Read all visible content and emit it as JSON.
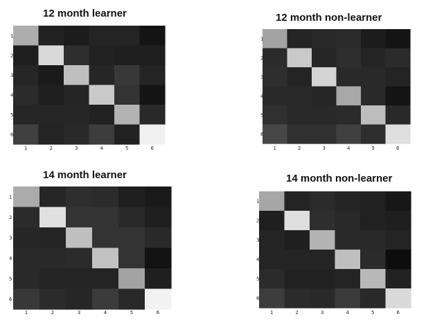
{
  "chart_data": [
    {
      "type": "heatmap",
      "title": "12 month learner",
      "x_ticks": [
        "1",
        "2",
        "3",
        "4",
        "5",
        "6"
      ],
      "y_ticks": [
        "1",
        "2",
        "3",
        "4",
        "5",
        "6"
      ],
      "colormap": "grayscale",
      "range": [
        0,
        1
      ],
      "values": [
        [
          0.68,
          0.13,
          0.11,
          0.14,
          0.14,
          0.08
        ],
        [
          0.12,
          0.85,
          0.18,
          0.13,
          0.12,
          0.12
        ],
        [
          0.15,
          0.1,
          0.75,
          0.15,
          0.22,
          0.14
        ],
        [
          0.17,
          0.12,
          0.14,
          0.79,
          0.2,
          0.08
        ],
        [
          0.15,
          0.15,
          0.15,
          0.13,
          0.7,
          0.16
        ],
        [
          0.25,
          0.14,
          0.16,
          0.24,
          0.13,
          0.94
        ]
      ]
    },
    {
      "type": "heatmap",
      "title": "12 month non-learner",
      "x_ticks": [
        "1",
        "2",
        "3",
        "4",
        "5",
        "6"
      ],
      "y_ticks": [
        "1",
        "2",
        "3",
        "4",
        "5",
        "6"
      ],
      "colormap": "grayscale",
      "range": [
        0,
        1
      ],
      "values": [
        [
          0.64,
          0.14,
          0.16,
          0.17,
          0.11,
          0.08
        ],
        [
          0.17,
          0.79,
          0.15,
          0.18,
          0.14,
          0.17
        ],
        [
          0.18,
          0.14,
          0.83,
          0.16,
          0.16,
          0.14
        ],
        [
          0.16,
          0.16,
          0.15,
          0.66,
          0.16,
          0.08
        ],
        [
          0.19,
          0.16,
          0.16,
          0.17,
          0.74,
          0.16
        ],
        [
          0.28,
          0.19,
          0.19,
          0.25,
          0.18,
          0.87
        ]
      ]
    },
    {
      "type": "heatmap",
      "title": "14 month learner",
      "x_ticks": [
        "1",
        "2",
        "3",
        "4",
        "5",
        "6"
      ],
      "y_ticks": [
        "1",
        "2",
        "3",
        "4",
        "5",
        "6"
      ],
      "colormap": "grayscale",
      "range": [
        0,
        1
      ],
      "values": [
        [
          0.67,
          0.15,
          0.18,
          0.17,
          0.12,
          0.1
        ],
        [
          0.17,
          0.88,
          0.2,
          0.2,
          0.16,
          0.12
        ],
        [
          0.15,
          0.14,
          0.75,
          0.2,
          0.2,
          0.16
        ],
        [
          0.16,
          0.16,
          0.17,
          0.76,
          0.2,
          0.07
        ],
        [
          0.16,
          0.14,
          0.14,
          0.14,
          0.64,
          0.12
        ],
        [
          0.22,
          0.17,
          0.15,
          0.23,
          0.16,
          0.95
        ]
      ]
    },
    {
      "type": "heatmap",
      "title": "14 month non-learner",
      "x_ticks": [
        "1",
        "2",
        "3",
        "4",
        "5",
        "6"
      ],
      "y_ticks": [
        "1",
        "2",
        "3",
        "4",
        "5",
        "6"
      ],
      "colormap": "grayscale",
      "range": [
        0,
        1
      ],
      "values": [
        [
          0.65,
          0.14,
          0.17,
          0.14,
          0.13,
          0.09
        ],
        [
          0.12,
          0.87,
          0.18,
          0.16,
          0.13,
          0.12
        ],
        [
          0.14,
          0.12,
          0.7,
          0.16,
          0.16,
          0.14
        ],
        [
          0.14,
          0.14,
          0.14,
          0.75,
          0.17,
          0.05
        ],
        [
          0.17,
          0.13,
          0.13,
          0.14,
          0.72,
          0.13
        ],
        [
          0.24,
          0.17,
          0.16,
          0.23,
          0.16,
          0.85
        ]
      ]
    }
  ]
}
